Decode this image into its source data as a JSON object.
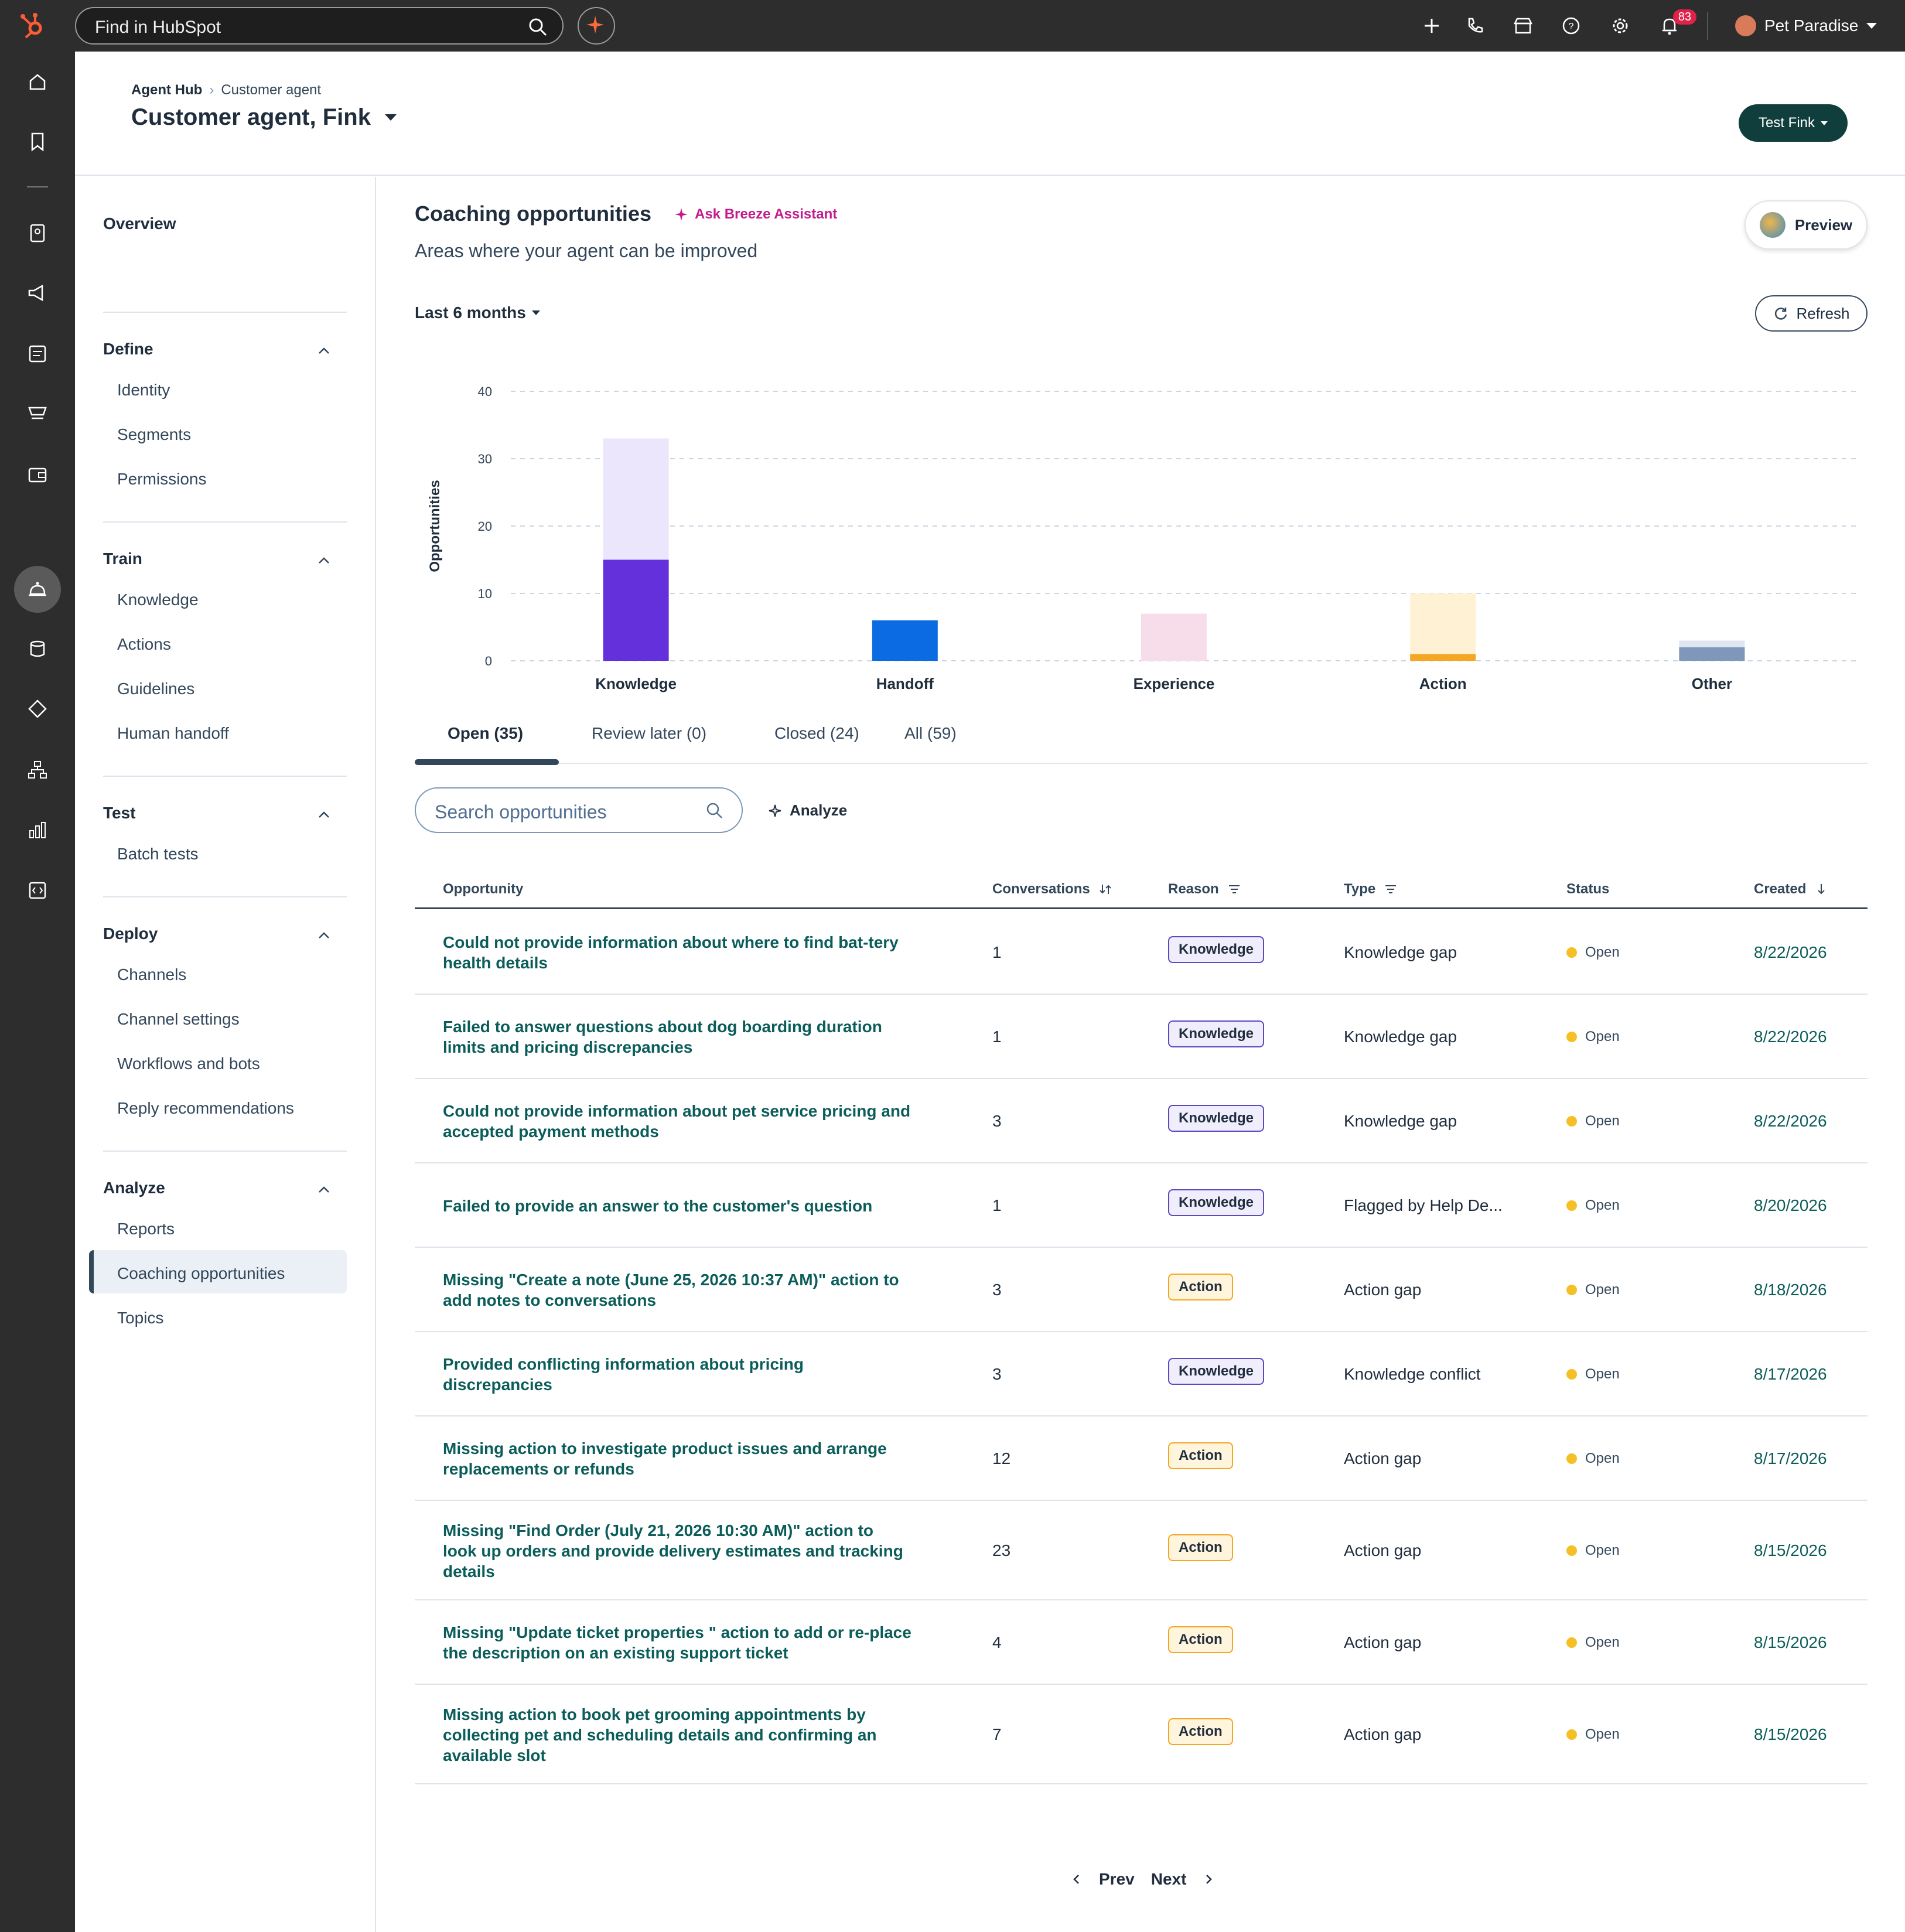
{
  "topnav": {
    "search_placeholder": "Find in HubSpot",
    "notifications_count": "83",
    "account_name": "Pet Paradise"
  },
  "header": {
    "breadcrumb_root": "Agent Hub",
    "breadcrumb_current": "Customer agent",
    "title": "Customer agent, Fink",
    "test_button": "Test Fink"
  },
  "sidebar": {
    "overview": "Overview",
    "groups": [
      {
        "label": "Define",
        "items": [
          "Identity",
          "Segments",
          "Permissions"
        ]
      },
      {
        "label": "Train",
        "items": [
          "Knowledge",
          "Actions",
          "Guidelines",
          "Human handoff"
        ]
      },
      {
        "label": "Test",
        "items": [
          "Batch tests"
        ]
      },
      {
        "label": "Deploy",
        "items": [
          "Channels",
          "Channel settings",
          "Workflows and bots",
          "Reply recommendations"
        ]
      },
      {
        "label": "Analyze",
        "items": [
          "Reports",
          "Coaching opportunities",
          "Topics"
        ]
      }
    ],
    "active_item": "Coaching opportunities"
  },
  "content": {
    "title": "Coaching opportunities",
    "ask_breeze": "Ask Breeze Assistant",
    "subtitle": "Areas where your agent can be improved",
    "preview_button": "Preview",
    "date_range": "Last 6 months",
    "refresh_button": "Refresh"
  },
  "chart_data": {
    "type": "bar",
    "stacked": true,
    "categories": [
      "Knowledge",
      "Handoff",
      "Experience",
      "Action",
      "Other"
    ],
    "ylabel": "Opportunities",
    "ylim": [
      0,
      40
    ],
    "yticks": [
      0,
      10,
      20,
      30,
      40
    ],
    "grid": true,
    "series": [
      {
        "values": [
          15,
          6,
          0,
          1,
          2
        ],
        "colors": [
          "#6430dc",
          "#0a6be2",
          "#f7dcea",
          "#f5a623",
          "#7e97ba"
        ]
      },
      {
        "values": [
          18,
          0,
          7,
          9,
          1
        ],
        "colors": [
          "#ebe6fb",
          "#0a6be2",
          "#f7dcea",
          "#fff1d4",
          "#dfe6f0"
        ]
      }
    ]
  },
  "tabs": [
    {
      "label": "Open (35)",
      "active": true
    },
    {
      "label": "Review later (0)",
      "active": false
    },
    {
      "label": "Closed (24)",
      "active": false
    },
    {
      "label": "All (59)",
      "active": false
    }
  ],
  "search": {
    "placeholder": "Search opportunities"
  },
  "analyze_label": "Analyze",
  "table": {
    "headers": {
      "opportunity": "Opportunity",
      "conversations": "Conversations",
      "reason": "Reason",
      "type": "Type",
      "status": "Status",
      "created": "Created"
    },
    "rows": [
      {
        "opportunity": "Could not provide information about where to find bat-tery health details",
        "conversations": "1",
        "reason": "Knowledge",
        "type": "Knowledge gap",
        "status": "Open",
        "created": "8/22/2026"
      },
      {
        "opportunity": "Failed to answer questions about dog boarding duration limits and pricing discrepancies",
        "conversations": "1",
        "reason": "Knowledge",
        "type": "Knowledge gap",
        "status": "Open",
        "created": "8/22/2026"
      },
      {
        "opportunity": "Could not provide information about pet service pricing and accepted payment methods",
        "conversations": "3",
        "reason": "Knowledge",
        "type": "Knowledge gap",
        "status": "Open",
        "created": "8/22/2026"
      },
      {
        "opportunity": "Failed to provide an answer to the customer's question",
        "conversations": "1",
        "reason": "Knowledge",
        "type": "Flagged by Help De...",
        "status": "Open",
        "created": "8/20/2026"
      },
      {
        "opportunity": "Missing \"Create a note (June 25, 2026 10:37 AM)\" action to add notes to conversations",
        "conversations": "3",
        "reason": "Action",
        "type": "Action gap",
        "status": "Open",
        "created": "8/18/2026"
      },
      {
        "opportunity": "Provided conflicting information about pricing discrepancies",
        "conversations": "3",
        "reason": "Knowledge",
        "type": "Knowledge conflict",
        "status": "Open",
        "created": "8/17/2026"
      },
      {
        "opportunity": "Missing action to investigate product issues and arrange replacements or refunds",
        "conversations": "12",
        "reason": "Action",
        "type": "Action gap",
        "status": "Open",
        "created": "8/17/2026"
      },
      {
        "opportunity": "Missing \"Find Order (July 21, 2026 10:30 AM)\" action to look up orders and provide delivery estimates and tracking details",
        "conversations": "23",
        "reason": "Action",
        "type": "Action gap",
        "status": "Open",
        "created": "8/15/2026"
      },
      {
        "opportunity": "Missing \"Update ticket properties \" action to add or re-place the description on an existing support ticket",
        "conversations": "4",
        "reason": "Action",
        "type": "Action gap",
        "status": "Open",
        "created": "8/15/2026"
      },
      {
        "opportunity": "Missing action to book pet grooming appointments by collecting pet and scheduling details and confirming an available slot",
        "conversations": "7",
        "reason": "Action",
        "type": "Action gap",
        "status": "Open",
        "created": "8/15/2026"
      }
    ]
  },
  "pagination": {
    "prev": "Prev",
    "next": "Next"
  }
}
